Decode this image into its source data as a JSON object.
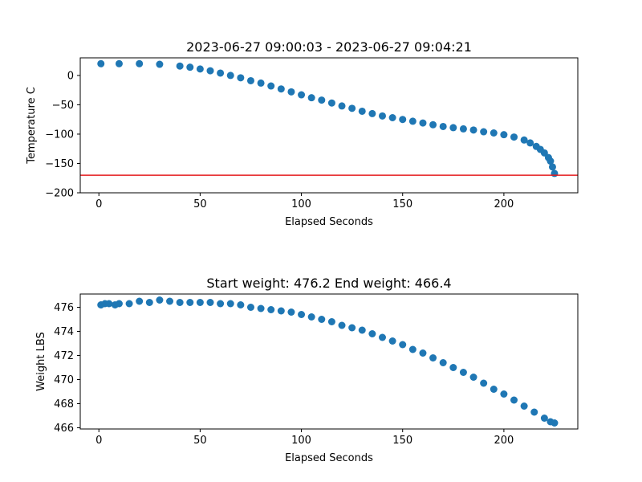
{
  "chart_data": [
    {
      "type": "scatter",
      "title": "2023-06-27 09:00:03 - 2023-06-27 09:04:21",
      "xlabel": "Elapsed Seconds",
      "ylabel": "Temperature C",
      "xlim": [
        -9.2,
        236.5
      ],
      "ylim": [
        -200,
        30
      ],
      "xticks": [
        0,
        50,
        100,
        150,
        200
      ],
      "yticks": [
        0,
        -50,
        -100,
        -150,
        -200
      ],
      "xtick_labels": [
        "0",
        "50",
        "100",
        "150",
        "200"
      ],
      "ytick_labels": [
        "0",
        "−50",
        "−100",
        "−150",
        "−200"
      ],
      "grid": false,
      "hline": {
        "y": -170,
        "color": "#e41a1c"
      },
      "marker_color": "#1f77b4",
      "series": [
        {
          "x": [
            1,
            10,
            20,
            30,
            40,
            45,
            50,
            55,
            60,
            65,
            70,
            75,
            80,
            85,
            90,
            95,
            100,
            105,
            110,
            115,
            120,
            125,
            130,
            135,
            140,
            145,
            150,
            155,
            160,
            165,
            170,
            175,
            180,
            185,
            190,
            195,
            200,
            205,
            210,
            213,
            216,
            218,
            220,
            222,
            223,
            224,
            225
          ],
          "y": [
            20,
            20,
            20,
            19,
            16,
            14,
            11,
            8,
            4,
            0,
            -4,
            -9,
            -13,
            -18,
            -23,
            -28,
            -33,
            -38,
            -42,
            -47,
            -52,
            -56,
            -61,
            -65,
            -69,
            -72,
            -75,
            -78,
            -81,
            -84,
            -87,
            -89,
            -91,
            -93,
            -96,
            -98,
            -101,
            -105,
            -110,
            -115,
            -121,
            -126,
            -132,
            -140,
            -146,
            -156,
            -167
          ]
        }
      ]
    },
    {
      "type": "scatter",
      "title": "Start weight: 476.2 End weight: 466.4",
      "xlabel": "Elapsed Seconds",
      "ylabel": "Weight LBS",
      "xlim": [
        -9.2,
        236.5
      ],
      "ylim": [
        465.9,
        477.1
      ],
      "xticks": [
        0,
        50,
        100,
        150,
        200
      ],
      "yticks": [
        466,
        468,
        470,
        472,
        474,
        476
      ],
      "xtick_labels": [
        "0",
        "50",
        "100",
        "150",
        "200"
      ],
      "ytick_labels": [
        "466",
        "468",
        "470",
        "472",
        "474",
        "476"
      ],
      "grid": false,
      "marker_color": "#1f77b4",
      "series": [
        {
          "x": [
            1,
            3,
            5,
            8,
            10,
            15,
            20,
            25,
            30,
            35,
            40,
            45,
            50,
            55,
            60,
            65,
            70,
            75,
            80,
            85,
            90,
            95,
            100,
            105,
            110,
            115,
            120,
            125,
            130,
            135,
            140,
            145,
            150,
            155,
            160,
            165,
            170,
            175,
            180,
            185,
            190,
            195,
            200,
            205,
            210,
            215,
            220,
            223,
            225
          ],
          "y": [
            476.2,
            476.3,
            476.3,
            476.2,
            476.3,
            476.3,
            476.5,
            476.4,
            476.6,
            476.5,
            476.4,
            476.4,
            476.4,
            476.4,
            476.3,
            476.3,
            476.2,
            476.0,
            475.9,
            475.8,
            475.7,
            475.6,
            475.4,
            475.2,
            475.0,
            474.8,
            474.5,
            474.3,
            474.1,
            473.8,
            473.5,
            473.2,
            472.9,
            472.5,
            472.2,
            471.8,
            471.4,
            471.0,
            470.6,
            470.2,
            469.7,
            469.2,
            468.8,
            468.3,
            467.8,
            467.3,
            466.8,
            466.5,
            466.4
          ]
        }
      ]
    }
  ]
}
